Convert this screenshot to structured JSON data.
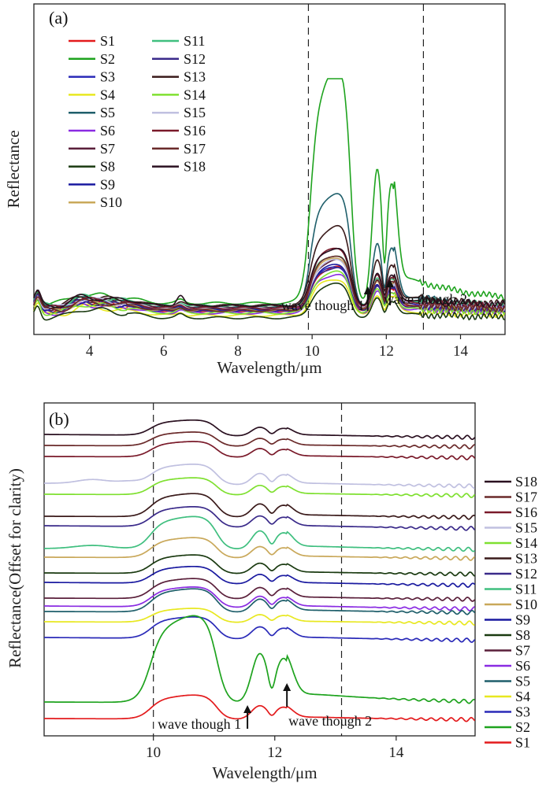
{
  "chart_data": [
    {
      "type": "line",
      "panel_tag": "(a)",
      "xlabel": "Wavelength/μm",
      "ylabel": "Reflectance",
      "xlim": [
        2.5,
        15.2
      ],
      "ylim": [
        0,
        1
      ],
      "xticks": [
        4,
        6,
        8,
        10,
        12,
        14
      ],
      "xtick_labels": [
        "4",
        "6",
        "8",
        "10",
        "12",
        "14"
      ],
      "y_tick_labels_shown": false,
      "dashed_vlines": [
        9.9,
        13.0
      ],
      "legend_placement": "top-left",
      "annotations": [
        {
          "text": "wave though 1",
          "x": 11.5
        },
        {
          "text": "wave though 2",
          "x": 12.1
        }
      ],
      "series": [
        {
          "name": "S1",
          "color": "#e31a1c",
          "amp": 0.18,
          "base": 0.05
        },
        {
          "name": "S2",
          "color": "#1ea31e",
          "amp": 0.98,
          "base": 0.08
        },
        {
          "name": "S3",
          "color": "#2a2ab8",
          "amp": 0.17,
          "base": 0.06
        },
        {
          "name": "S4",
          "color": "#e8e820",
          "amp": 0.15,
          "base": 0.03
        },
        {
          "name": "S5",
          "color": "#1f5f6b",
          "amp": 0.48,
          "base": 0.06
        },
        {
          "name": "S6",
          "color": "#8a2be2",
          "amp": 0.16,
          "base": 0.04
        },
        {
          "name": "S7",
          "color": "#5a1f3a",
          "amp": 0.2,
          "base": 0.06
        },
        {
          "name": "S8",
          "color": "#1a3a10",
          "amp": 0.14,
          "base": 0.02
        },
        {
          "name": "S9",
          "color": "#1a1aa0",
          "amp": 0.19,
          "base": 0.05
        },
        {
          "name": "S10",
          "color": "#c9a85a",
          "amp": 0.22,
          "base": 0.05
        },
        {
          "name": "S11",
          "color": "#3fbf7f",
          "amp": 0.21,
          "base": 0.07
        },
        {
          "name": "S12",
          "color": "#3a2a8a",
          "amp": 0.18,
          "base": 0.05
        },
        {
          "name": "S13",
          "color": "#3a1a1a",
          "amp": 0.33,
          "base": 0.07
        },
        {
          "name": "S14",
          "color": "#7fe030",
          "amp": 0.17,
          "base": 0.04
        },
        {
          "name": "S15",
          "color": "#c0c0e0",
          "amp": 0.2,
          "base": 0.06
        },
        {
          "name": "S16",
          "color": "#7a1a2a",
          "amp": 0.25,
          "base": 0.06
        },
        {
          "name": "S17",
          "color": "#6a2a2a",
          "amp": 0.23,
          "base": 0.05
        },
        {
          "name": "S18",
          "color": "#2a1020",
          "amp": 0.24,
          "base": 0.07
        }
      ]
    },
    {
      "type": "line",
      "panel_tag": "(b)",
      "xlabel": "Wavelength/μm",
      "ylabel": "Reflectance(Offset for clarity)",
      "xlim": [
        8.2,
        15.3
      ],
      "ylim": [
        0,
        1
      ],
      "xticks": [
        10,
        12,
        14
      ],
      "xtick_labels": [
        "10",
        "12",
        "14"
      ],
      "y_tick_labels_shown": false,
      "dashed_vlines": [
        10.0,
        13.1
      ],
      "legend_placement": "right",
      "annotations": [
        {
          "text": "wave though 1",
          "x": 11.55
        },
        {
          "text": "wave though 2",
          "x": 12.2
        }
      ],
      "series_order_top_to_bottom": [
        "S18",
        "S17",
        "S16",
        "S15",
        "S14",
        "S13",
        "S12",
        "S11",
        "S10",
        "S9",
        "S8",
        "S7",
        "S6",
        "S5",
        "S4",
        "S3",
        "S2",
        "S1"
      ]
    }
  ]
}
